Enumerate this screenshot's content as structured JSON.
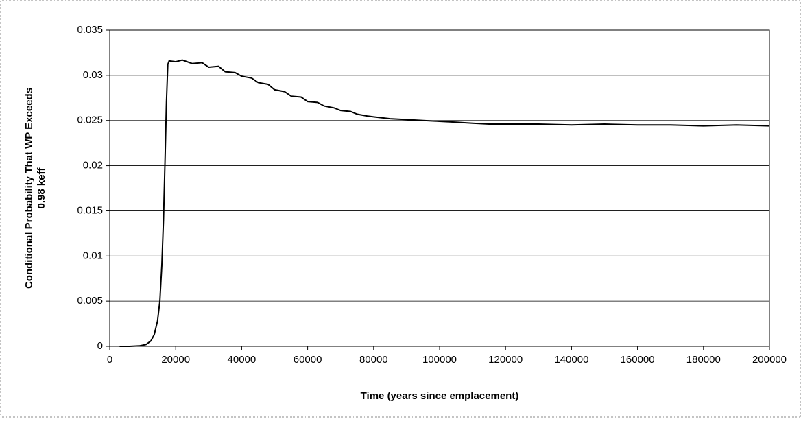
{
  "chart_data": {
    "type": "line",
    "xlabel": "Time (years since emplacement)",
    "ylabel": "Conditional Probability That WP Exceeds 0.98 keff",
    "x": [
      3000,
      6000,
      9000,
      11000,
      12500,
      13500,
      14500,
      15200,
      15800,
      16300,
      16800,
      17200,
      17600,
      18000,
      20000,
      22000,
      25000,
      28000,
      30000,
      33000,
      35000,
      38000,
      40000,
      43000,
      45000,
      48000,
      50000,
      53000,
      55000,
      58000,
      60000,
      63000,
      65000,
      68000,
      70000,
      73000,
      75000,
      78000,
      80000,
      85000,
      90000,
      95000,
      100000,
      105000,
      110000,
      115000,
      120000,
      130000,
      140000,
      150000,
      160000,
      170000,
      180000,
      190000,
      200000
    ],
    "values": [
      0,
      0,
      5e-05,
      0.0002,
      0.0006,
      0.0013,
      0.0028,
      0.005,
      0.009,
      0.014,
      0.021,
      0.027,
      0.0312,
      0.0316,
      0.0315,
      0.0317,
      0.0313,
      0.0314,
      0.0309,
      0.031,
      0.0304,
      0.0303,
      0.0299,
      0.0297,
      0.0292,
      0.029,
      0.0284,
      0.0282,
      0.0277,
      0.0276,
      0.0271,
      0.027,
      0.0266,
      0.0264,
      0.0261,
      0.026,
      0.0257,
      0.0255,
      0.0254,
      0.0252,
      0.0251,
      0.025,
      0.0249,
      0.0248,
      0.0247,
      0.0246,
      0.0246,
      0.0246,
      0.0245,
      0.0246,
      0.0245,
      0.0245,
      0.0244,
      0.0245,
      0.0244
    ],
    "color": "#000000",
    "xlim": [
      0,
      200000
    ],
    "xticks": [
      0,
      20000,
      40000,
      60000,
      80000,
      100000,
      120000,
      140000,
      160000,
      180000,
      200000
    ],
    "ylim": [
      0,
      0.035
    ],
    "yticks": [
      0,
      0.005,
      0.01,
      0.015,
      0.02,
      0.025,
      0.03,
      0.035
    ],
    "grid": true
  }
}
